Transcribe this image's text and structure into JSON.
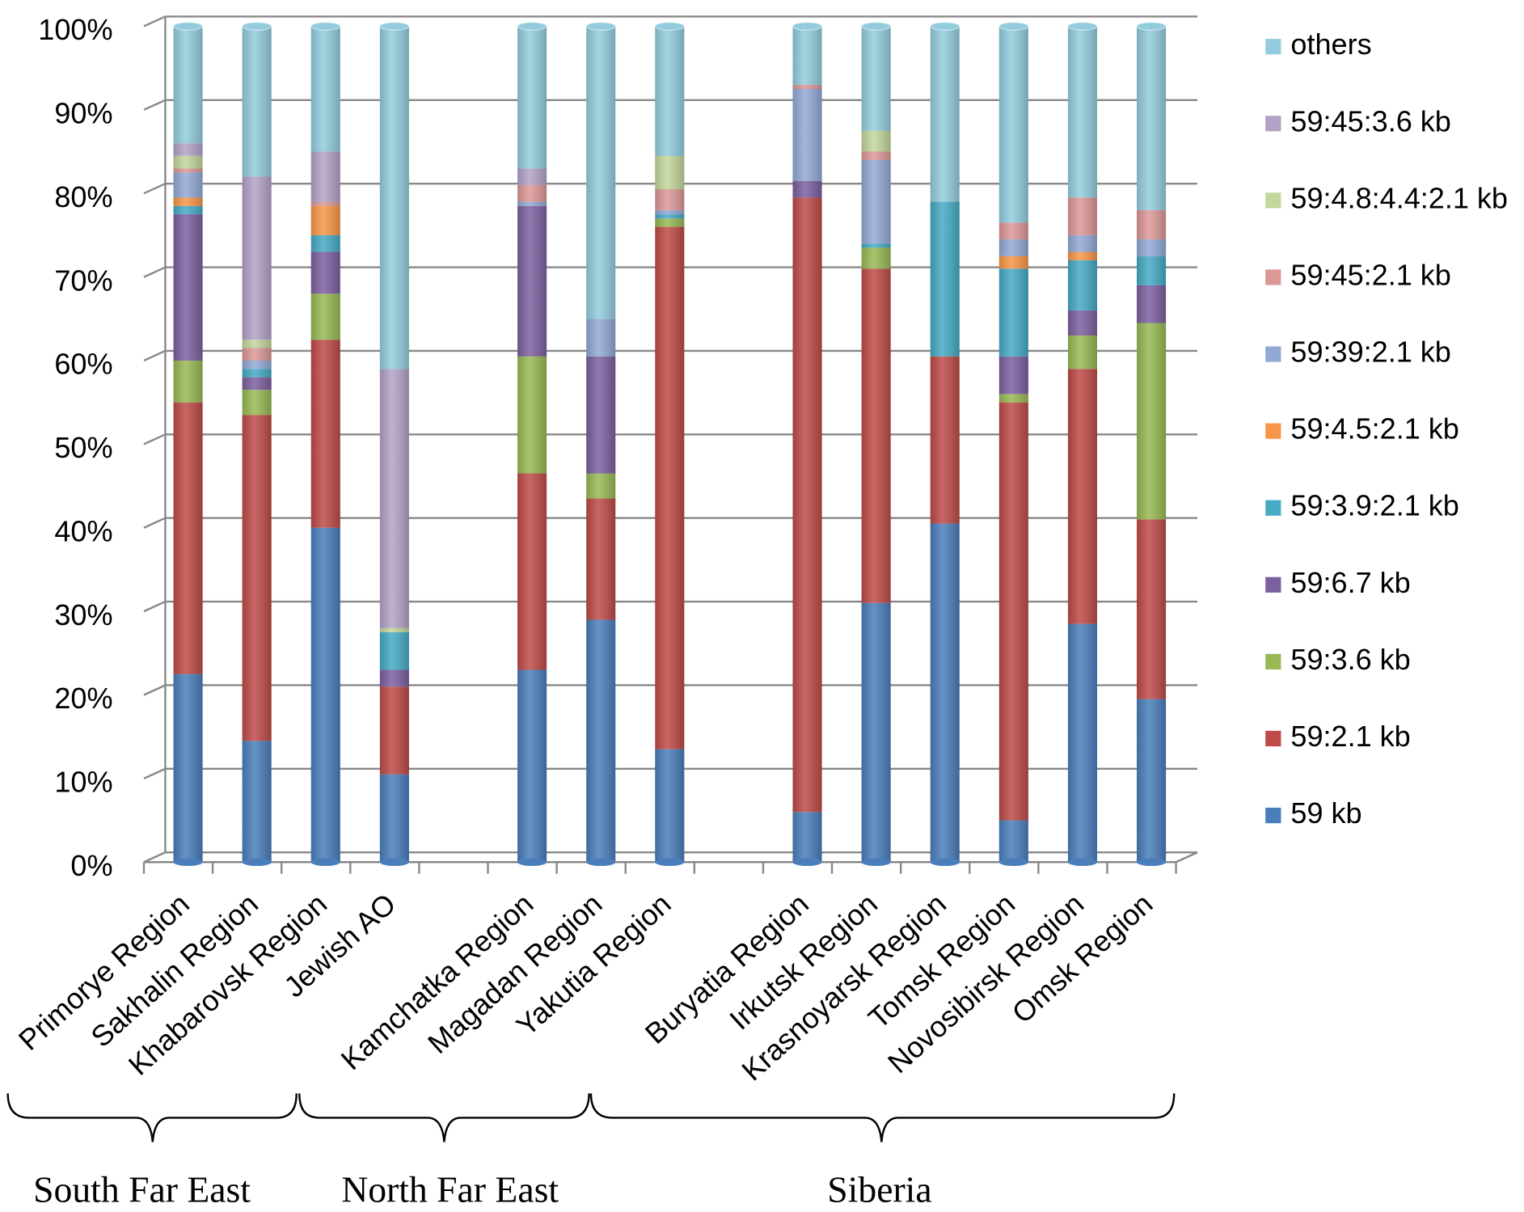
{
  "chart_data": {
    "type": "stacked_bar",
    "categories": [
      "Primorye Region",
      "Sakhalin Region",
      "Khabarovsk Region",
      "Jewish AO",
      null,
      "Kamchatka Region",
      "Magadan Region",
      "Yakutia Region",
      null,
      "Buryatia Region",
      "Irkutsk Region",
      "Krasnoyarsk Region",
      "Tomsk Region",
      "Novosibirsk Region",
      "Omsk Region"
    ],
    "series": [
      {
        "name": "59 kb",
        "color": "#4a7ebb",
        "values": [
          22.5,
          14.5,
          40,
          10.5,
          null,
          23,
          29,
          13.5,
          null,
          6,
          31,
          40.5,
          5,
          28.5,
          19.5
        ]
      },
      {
        "name": "59:2.1 kb",
        "color": "#be4b48",
        "values": [
          32.5,
          39,
          22.5,
          10.5,
          null,
          23.5,
          14.5,
          62.5,
          null,
          73.5,
          40,
          20,
          50,
          30.5,
          21.5
        ]
      },
      {
        "name": "59:3.6 kb",
        "color": "#98b954",
        "values": [
          5,
          3,
          5.5,
          0,
          null,
          14,
          3,
          1,
          null,
          0,
          2.5,
          0,
          1,
          4,
          23.5
        ]
      },
      {
        "name": "59:6.7 kb",
        "color": "#7d60a0",
        "values": [
          17.5,
          1.5,
          5,
          2,
          null,
          18,
          14,
          0,
          null,
          2,
          0,
          0,
          4.5,
          3,
          4.5
        ]
      },
      {
        "name": "59:3.9:2.1 kb",
        "color": "#46aac5",
        "values": [
          1,
          1,
          2,
          4.5,
          null,
          0,
          0,
          0.5,
          null,
          0,
          0.5,
          18.5,
          10.5,
          6,
          3.5
        ]
      },
      {
        "name": "59:4.5:2.1 kb",
        "color": "#f79646",
        "values": [
          1,
          0,
          3.5,
          0,
          null,
          0,
          0,
          0,
          null,
          0,
          0,
          0,
          1.5,
          1,
          0
        ]
      },
      {
        "name": "59:39:2.1 kb",
        "color": "#92a9d6",
        "values": [
          3,
          1,
          0,
          0,
          null,
          0.5,
          4.5,
          0.5,
          null,
          11,
          10,
          0,
          2,
          2,
          2
        ]
      },
      {
        "name": "59:45:2.1 kb",
        "color": "#dc9897",
        "values": [
          0.5,
          1.5,
          0.5,
          0,
          null,
          2,
          0,
          2.5,
          null,
          0.5,
          1,
          0,
          2,
          4.5,
          3.5
        ]
      },
      {
        "name": "59:4.8:4.4:2.1 kb",
        "color": "#c3d69b",
        "values": [
          1.5,
          1,
          0,
          0.5,
          null,
          0,
          0,
          4,
          null,
          0,
          2.5,
          0,
          0,
          0,
          0
        ]
      },
      {
        "name": "59:45:3.6 kb",
        "color": "#b3a2c7",
        "values": [
          1.5,
          19.5,
          6,
          31,
          null,
          2,
          0,
          0,
          null,
          0,
          0,
          0,
          0,
          0,
          0
        ]
      },
      {
        "name": "others",
        "color": "#93cddd",
        "values": [
          14,
          18,
          15,
          41,
          null,
          17,
          35,
          15.5,
          null,
          7,
          12.5,
          21,
          23.5,
          20.5,
          22
        ]
      }
    ],
    "ylim": [
      0,
      100
    ],
    "yticks": [
      {
        "value": 0,
        "label": "0%"
      },
      {
        "value": 10,
        "label": "10%"
      },
      {
        "value": 20,
        "label": "20%"
      },
      {
        "value": 30,
        "label": "30%"
      },
      {
        "value": 40,
        "label": "40%"
      },
      {
        "value": 50,
        "label": "50%"
      },
      {
        "value": 60,
        "label": "60%"
      },
      {
        "value": 70,
        "label": "70%"
      },
      {
        "value": 80,
        "label": "80%"
      },
      {
        "value": 90,
        "label": "90%"
      },
      {
        "value": 100,
        "label": "100%"
      }
    ],
    "grid": true,
    "legend": "right",
    "group_labels": [
      "South Far East",
      "North Far East",
      "Siberia"
    ]
  }
}
